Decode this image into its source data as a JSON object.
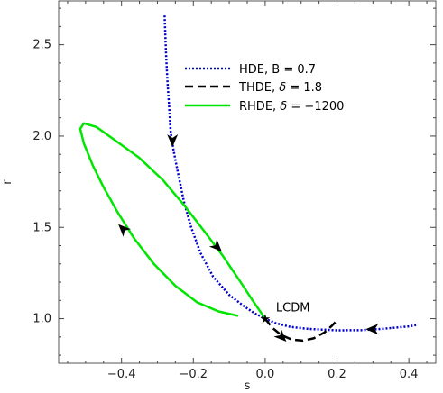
{
  "chart_data": {
    "type": "line",
    "xlabel": "s",
    "ylabel": "r",
    "xlim": [
      -0.575,
      0.475
    ],
    "ylim": [
      0.756,
      2.74
    ],
    "x_ticks": [
      -0.4,
      -0.2,
      0.0,
      0.2,
      0.4
    ],
    "x_tick_labels": [
      "−0.4",
      "−0.2",
      "0.0",
      "0.2",
      "0.4"
    ],
    "y_ticks": [
      1.0,
      1.5,
      2.0,
      2.5
    ],
    "y_tick_labels": [
      "1.0",
      "1.5",
      "2.0",
      "2.5"
    ],
    "grid": false,
    "legend_position": "top-right",
    "series": [
      {
        "name": "HDE, B = 0.7",
        "legend_label": "HDE, B = 0.7",
        "color": "#0000cc",
        "style": "dotted",
        "points": [
          [
            -0.28,
            2.66
          ],
          [
            -0.276,
            2.45
          ],
          [
            -0.272,
            2.3
          ],
          [
            -0.267,
            2.15
          ],
          [
            -0.263,
            2.02
          ],
          [
            -0.255,
            1.92
          ],
          [
            -0.243,
            1.8
          ],
          [
            -0.226,
            1.64
          ],
          [
            -0.206,
            1.5
          ],
          [
            -0.18,
            1.36
          ],
          [
            -0.145,
            1.23
          ],
          [
            -0.1,
            1.13
          ],
          [
            -0.06,
            1.07
          ],
          [
            -0.03,
            1.03
          ],
          [
            0.0,
            1.0
          ],
          [
            0.03,
            0.975
          ],
          [
            0.07,
            0.955
          ],
          [
            0.12,
            0.944
          ],
          [
            0.2,
            0.936
          ],
          [
            0.27,
            0.937
          ],
          [
            0.33,
            0.945
          ],
          [
            0.4,
            0.958
          ],
          [
            0.42,
            0.965
          ]
        ],
        "arrows": [
          {
            "x": -0.258,
            "y": 1.98,
            "direction": "down"
          },
          {
            "x": 0.3,
            "y": 0.942,
            "direction": "left"
          }
        ]
      },
      {
        "name": "THDE, δ = 1.8",
        "legend_label_prefix": "THDE, ",
        "legend_label_symbol": "δ",
        "legend_label_suffix": " = 1.8",
        "color": "#000000",
        "style": "dashed",
        "points": [
          [
            0.0,
            1.0
          ],
          [
            0.02,
            0.95
          ],
          [
            0.045,
            0.91
          ],
          [
            0.075,
            0.885
          ],
          [
            0.105,
            0.88
          ],
          [
            0.135,
            0.892
          ],
          [
            0.165,
            0.925
          ],
          [
            0.185,
            0.96
          ],
          [
            0.2,
            0.99
          ]
        ],
        "arrows": [
          {
            "x": 0.045,
            "y": 0.902,
            "direction": "down-right"
          }
        ]
      },
      {
        "name": "RHDE, δ = −1200",
        "legend_label_prefix": "RHDE, ",
        "legend_label_symbol": "δ",
        "legend_label_suffix": " = −1200",
        "color": "#00e600",
        "style": "solid",
        "points": [
          [
            0.0,
            1.0
          ],
          [
            -0.035,
            1.1
          ],
          [
            -0.075,
            1.22
          ],
          [
            -0.12,
            1.35
          ],
          [
            -0.17,
            1.48
          ],
          [
            -0.225,
            1.62
          ],
          [
            -0.285,
            1.76
          ],
          [
            -0.35,
            1.88
          ],
          [
            -0.42,
            1.98
          ],
          [
            -0.47,
            2.05
          ],
          [
            -0.505,
            2.07
          ],
          [
            -0.515,
            2.04
          ],
          [
            -0.505,
            1.96
          ],
          [
            -0.48,
            1.84
          ],
          [
            -0.45,
            1.72
          ],
          [
            -0.41,
            1.58
          ],
          [
            -0.365,
            1.44
          ],
          [
            -0.31,
            1.3
          ],
          [
            -0.25,
            1.18
          ],
          [
            -0.19,
            1.09
          ],
          [
            -0.13,
            1.04
          ],
          [
            -0.075,
            1.015
          ]
        ],
        "arrows": [
          {
            "x": -0.395,
            "y": 1.49,
            "direction": "up-left"
          },
          {
            "x": -0.135,
            "y": 1.395,
            "direction": "down-right"
          }
        ]
      }
    ],
    "annotations": [
      {
        "text": "LCDM",
        "x": 0.0,
        "y": 1.0,
        "marker": "star"
      }
    ]
  }
}
